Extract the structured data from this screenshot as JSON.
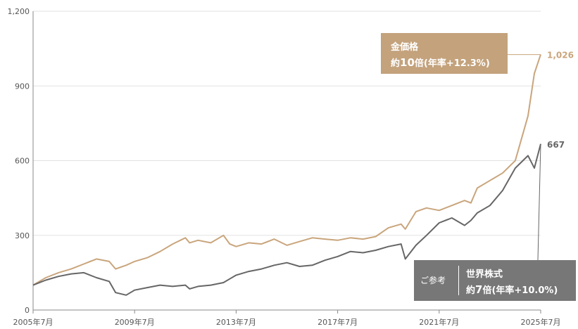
{
  "chart_data": {
    "type": "line",
    "y_axis": {
      "ylim": [
        0,
        1200
      ],
      "ticks": [
        0,
        300,
        600,
        900,
        1200
      ],
      "tick_labels": [
        "0",
        "300",
        "600",
        "900",
        "1,200"
      ]
    },
    "x_axis": {
      "range": [
        "2005-07",
        "2025-07"
      ],
      "ticks": [
        "2005-07",
        "2009-07",
        "2013-07",
        "2017-07",
        "2021-07",
        "2025-07"
      ],
      "tick_labels": [
        "2005年7月",
        "2009年7月",
        "2013年7月",
        "2017年7月",
        "2021年7月",
        "2025年7月"
      ]
    },
    "grid": "horizontal",
    "x": [
      "2005-07",
      "2006-01",
      "2006-07",
      "2007-01",
      "2007-07",
      "2008-01",
      "2008-07",
      "2008-10",
      "2009-03",
      "2009-07",
      "2010-01",
      "2010-07",
      "2011-01",
      "2011-07",
      "2011-09",
      "2012-01",
      "2012-07",
      "2013-01",
      "2013-04",
      "2013-07",
      "2014-01",
      "2014-07",
      "2015-01",
      "2015-07",
      "2016-01",
      "2016-07",
      "2017-01",
      "2017-07",
      "2018-01",
      "2018-07",
      "2019-01",
      "2019-07",
      "2020-01",
      "2020-03",
      "2020-08",
      "2021-01",
      "2021-07",
      "2022-01",
      "2022-07",
      "2022-10",
      "2023-01",
      "2023-07",
      "2024-01",
      "2024-07",
      "2025-01",
      "2025-04",
      "2025-07"
    ],
    "series": [
      {
        "name": "金価格",
        "color": "#c9a57c",
        "end_label": "1,026",
        "annotation": {
          "line1": "金価格",
          "line2_prefix": "約",
          "line2_big": "10",
          "line2_suffix": "倍(年率+12.3%)"
        },
        "values": [
          100,
          130,
          150,
          165,
          185,
          205,
          195,
          165,
          180,
          195,
          210,
          235,
          265,
          290,
          270,
          280,
          270,
          300,
          265,
          255,
          270,
          265,
          285,
          260,
          275,
          290,
          285,
          280,
          290,
          285,
          295,
          330,
          345,
          325,
          395,
          410,
          400,
          420,
          440,
          430,
          490,
          520,
          550,
          600,
          780,
          950,
          1026
        ]
      },
      {
        "name": "世界株式",
        "color": "#666666",
        "end_label": "667",
        "annotation": {
          "prefix": "ご参考",
          "line1": "世界株式",
          "line2_prefix": "約",
          "line2_big": "7",
          "line2_suffix": "倍(年率+10.0%)"
        },
        "values": [
          100,
          120,
          135,
          145,
          150,
          130,
          115,
          70,
          60,
          80,
          90,
          100,
          95,
          100,
          85,
          95,
          100,
          110,
          125,
          140,
          155,
          165,
          180,
          190,
          175,
          180,
          200,
          215,
          235,
          230,
          240,
          255,
          265,
          205,
          260,
          300,
          350,
          370,
          340,
          360,
          390,
          420,
          480,
          570,
          620,
          570,
          667
        ]
      }
    ]
  }
}
